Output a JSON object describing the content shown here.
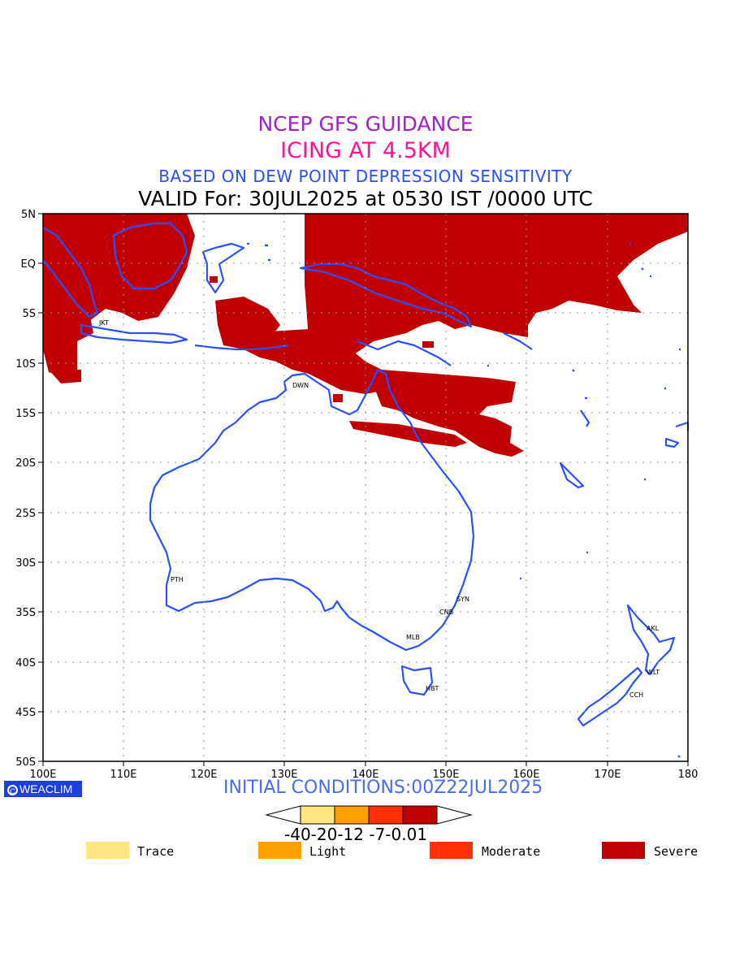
{
  "titles": {
    "line1": "NCEP GFS GUIDANCE",
    "line2": "ICING AT 4.5KM",
    "line3": "BASED ON DEW POINT DEPRESSION SENSITIVITY",
    "line4": "VALID For: 30JUL2025 at 0530 IST /0000 UTC"
  },
  "initial_conditions": "INITIAL CONDITIONS:00Z22JUL2025",
  "logo_text": "WEACLIM",
  "axes": {
    "y_labels": [
      "5N",
      "EQ",
      "5S",
      "10S",
      "15S",
      "20S",
      "25S",
      "30S",
      "35S",
      "40S",
      "45S",
      "50S"
    ],
    "x_labels": [
      "100E",
      "110E",
      "120E",
      "130E",
      "140E",
      "150E",
      "160E",
      "170E",
      "180"
    ]
  },
  "stations": [
    "JKT",
    "DWN",
    "PTH",
    "SYN",
    "CNB",
    "MLB",
    "HBT",
    "AKL",
    "WLT",
    "CCH"
  ],
  "colorbar": {
    "labels_text": "-40-20-12 -7-0.01",
    "colors": [
      "#ffe680",
      "#ffa000",
      "#ff3000",
      "#c00000"
    ]
  },
  "legend": [
    {
      "label": "Trace",
      "color": "#ffe680"
    },
    {
      "label": "Light",
      "color": "#ffa000"
    },
    {
      "label": "Moderate",
      "color": "#ff3000"
    },
    {
      "label": "Severe",
      "color": "#c00000"
    }
  ],
  "colors": {
    "coastline": "#2850ff",
    "severe": "#c00000",
    "grid": "#999999"
  }
}
